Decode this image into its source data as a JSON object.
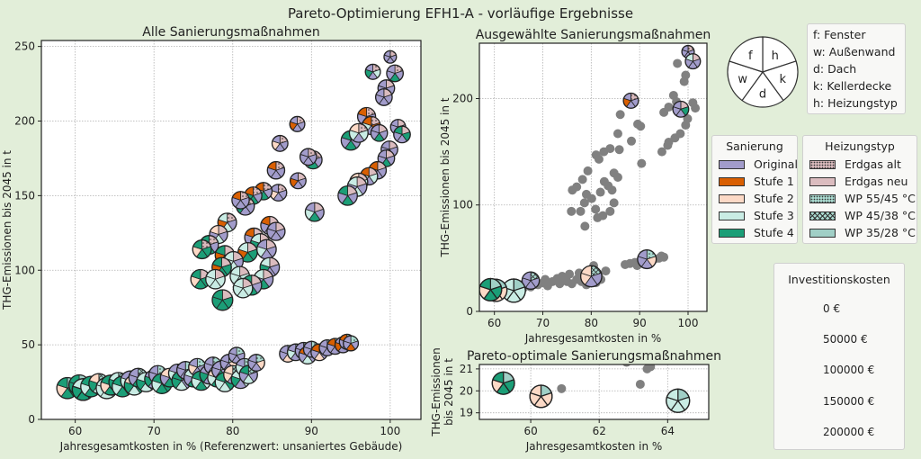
{
  "title": "Pareto-Optimierung EFH1-A - vorläufige Ergebnisse",
  "colors": {
    "building": [
      "#a29ccb",
      "#d95f02",
      "#fcd9c6",
      "#c9ece4",
      "#1b9e77"
    ],
    "heating": [
      "#d8b8bb",
      "#dbbcbf",
      "#a9d9cf",
      "#a9d9cf",
      "#a0cfc6"
    ],
    "gray": "#808080",
    "background": "#e2eed9"
  },
  "key_legend": {
    "pie_labels": {
      "f": "f",
      "w": "w",
      "d": "d",
      "k": "k",
      "h": "h"
    },
    "items": [
      "f: Fenster",
      "w: Außenwand",
      "d: Dach",
      "k: Kellerdecke",
      "h: Heizungstyp"
    ]
  },
  "legend_sanierung": {
    "title": "Sanierung",
    "items": [
      "Original",
      "Stufe 1",
      "Stufe 2",
      "Stufe 3",
      "Stufe 4"
    ]
  },
  "legend_heizung": {
    "title": "Heizungstyp",
    "items": [
      "Erdgas alt",
      "Erdgas neu",
      "WP 55/45 °C",
      "WP 45/38 °C",
      "WP 35/28 °C"
    ]
  },
  "legend_invest": {
    "title": "Investitionskosten",
    "values": [
      0,
      50000,
      100000,
      150000,
      200000
    ],
    "labels": [
      "0 €",
      "50000 €",
      "100000 €",
      "150000 €",
      "200000 €"
    ]
  },
  "chart_data": [
    {
      "id": "all",
      "type": "scatter",
      "title": "Alle Sanierungsmaßnahmen",
      "xlabel": "Jahresgesamtkosten in % (Referenzwert: unsaniertes Gebäude)",
      "ylabel": "THG-Emissionen bis 2045 in t",
      "xlim": [
        55.7,
        103.9
      ],
      "ylim": [
        0,
        254
      ],
      "xticks": [
        60,
        70,
        80,
        90,
        100
      ],
      "yticks": [
        0,
        50,
        100,
        150,
        200,
        250
      ],
      "grid": true,
      "point_format": [
        "x",
        "y",
        "investment_kEUR",
        "f",
        "w",
        "d",
        "k",
        "h"
      ],
      "points": [
        [
          100,
          243,
          15,
          0,
          0,
          0,
          0,
          0
        ],
        [
          97.8,
          233,
          30,
          0,
          4,
          0,
          3,
          0
        ],
        [
          100.6,
          232,
          40,
          0,
          0,
          4,
          0,
          0
        ],
        [
          99.5,
          222,
          40,
          0,
          0,
          4,
          0,
          1
        ],
        [
          99.2,
          216,
          40,
          0,
          0,
          0,
          0,
          1
        ],
        [
          88.2,
          198,
          30,
          0,
          1,
          0,
          0,
          0
        ],
        [
          86,
          185,
          35,
          0,
          2,
          0,
          0,
          0
        ],
        [
          97,
          203,
          50,
          1,
          0,
          0,
          0,
          0
        ],
        [
          97.6,
          197,
          50,
          1,
          3,
          0,
          1,
          0
        ],
        [
          95,
          187,
          60,
          4,
          0,
          4,
          0,
          0
        ],
        [
          96,
          192,
          55,
          2,
          3,
          0,
          3,
          0
        ],
        [
          98.6,
          192,
          40,
          0,
          0,
          4,
          0,
          1
        ],
        [
          101,
          196,
          30,
          0,
          0,
          0,
          0,
          1
        ],
        [
          101.5,
          191,
          40,
          4,
          0,
          0,
          4,
          1
        ],
        [
          99.9,
          181,
          40,
          0,
          0,
          0,
          0,
          1
        ],
        [
          99.5,
          175,
          40,
          0,
          0,
          4,
          0,
          1
        ],
        [
          90.2,
          174,
          50,
          0,
          3,
          4,
          0,
          0
        ],
        [
          89.6,
          176,
          40,
          0,
          0,
          0,
          0,
          0
        ],
        [
          98.4,
          167,
          45,
          1,
          0,
          0,
          0,
          1
        ],
        [
          97.3,
          163,
          45,
          1,
          3,
          0,
          3,
          1
        ],
        [
          96,
          159,
          50,
          2,
          3,
          0,
          3,
          1
        ],
        [
          95.8,
          156,
          60,
          3,
          0,
          3,
          0,
          1
        ],
        [
          94.6,
          150,
          60,
          4,
          0,
          4,
          0,
          1
        ],
        [
          88.3,
          160,
          35,
          0,
          1,
          0,
          0,
          1
        ],
        [
          90.4,
          139,
          55,
          0,
          3,
          4,
          0,
          1
        ],
        [
          85.5,
          167,
          45,
          1,
          0,
          0,
          0,
          0
        ],
        [
          85.8,
          152,
          40,
          0,
          2,
          0,
          0,
          0
        ],
        [
          83.9,
          153,
          45,
          1,
          3,
          4,
          0,
          0
        ],
        [
          82.6,
          150,
          45,
          1,
          4,
          4,
          0,
          0
        ],
        [
          81.6,
          143,
          50,
          3,
          4,
          0,
          0,
          0
        ],
        [
          81,
          147,
          45,
          1,
          0,
          0,
          0,
          0
        ],
        [
          84.7,
          130,
          50,
          1,
          0,
          0,
          0,
          1
        ],
        [
          85.5,
          126,
          50,
          0,
          0,
          0,
          0,
          1
        ],
        [
          79.3,
          132,
          55,
          3,
          1,
          3,
          0,
          0
        ],
        [
          78.2,
          124,
          50,
          2,
          0,
          3,
          0,
          1
        ],
        [
          77,
          117,
          55,
          4,
          1,
          4,
          0,
          0
        ],
        [
          76.1,
          114,
          55,
          4,
          2,
          4,
          4,
          0
        ],
        [
          82.7,
          122,
          55,
          1,
          0,
          0,
          0,
          1
        ],
        [
          83.5,
          118,
          60,
          3,
          4,
          0,
          0,
          1
        ],
        [
          81.9,
          112,
          60,
          3,
          1,
          4,
          4,
          1
        ],
        [
          84.3,
          114,
          60,
          0,
          3,
          0,
          0,
          1
        ],
        [
          79,
          110,
          60,
          4,
          1,
          4,
          4,
          1
        ],
        [
          80.1,
          106,
          60,
          3,
          3,
          3,
          0,
          1
        ],
        [
          84.7,
          102,
          60,
          3,
          4,
          0,
          0,
          1
        ],
        [
          83.9,
          94,
          60,
          3,
          0,
          4,
          0,
          1
        ],
        [
          80.9,
          96,
          60,
          3,
          3,
          3,
          3,
          1
        ],
        [
          78.6,
          102,
          60,
          4,
          1,
          4,
          4,
          1
        ],
        [
          75.9,
          94,
          60,
          4,
          2,
          4,
          4,
          1
        ],
        [
          77.8,
          94,
          60,
          3,
          3,
          3,
          3,
          1
        ],
        [
          82.4,
          90,
          65,
          4,
          0,
          4,
          0,
          1
        ],
        [
          81.3,
          88,
          60,
          3,
          3,
          3,
          3,
          1
        ],
        [
          78.7,
          80,
          70,
          4,
          4,
          4,
          4,
          1
        ],
        [
          59,
          21,
          75,
          4,
          2,
          4,
          4,
          4
        ],
        [
          60.5,
          23,
          70,
          4,
          4,
          2,
          4,
          4
        ],
        [
          61,
          20,
          80,
          3,
          4,
          4,
          3,
          4
        ],
        [
          62,
          22,
          70,
          4,
          3,
          4,
          4,
          3
        ],
        [
          63,
          24,
          65,
          2,
          4,
          3,
          4,
          3
        ],
        [
          64,
          21,
          75,
          3,
          3,
          3,
          3,
          4
        ],
        [
          64.5,
          23,
          65,
          4,
          2,
          4,
          0,
          3
        ],
        [
          65.5,
          25,
          60,
          3,
          4,
          0,
          4,
          3
        ],
        [
          66,
          22,
          70,
          4,
          3,
          4,
          3,
          4
        ],
        [
          67,
          26,
          60,
          0,
          3,
          0,
          4,
          3
        ],
        [
          67.5,
          23,
          65,
          2,
          4,
          3,
          4,
          4
        ],
        [
          68,
          28,
          55,
          0,
          0,
          4,
          0,
          3
        ],
        [
          69,
          25,
          60,
          3,
          4,
          3,
          0,
          3
        ],
        [
          70,
          27,
          55,
          0,
          4,
          0,
          3,
          2
        ],
        [
          70.5,
          30,
          50,
          0,
          0,
          3,
          0,
          2
        ],
        [
          71,
          24,
          65,
          4,
          3,
          4,
          4,
          4
        ],
        [
          72,
          28,
          55,
          2,
          0,
          4,
          0,
          3
        ],
        [
          73,
          31,
          50,
          0,
          3,
          0,
          0,
          2
        ],
        [
          73.5,
          26,
          60,
          4,
          4,
          3,
          0,
          3
        ],
        [
          74,
          33,
          45,
          0,
          0,
          0,
          3,
          2
        ],
        [
          75,
          28,
          55,
          3,
          0,
          4,
          0,
          3
        ],
        [
          75.5,
          35,
          45,
          0,
          2,
          0,
          0,
          2
        ],
        [
          76,
          26,
          60,
          4,
          3,
          4,
          3,
          4
        ],
        [
          77,
          30,
          55,
          0,
          4,
          0,
          2,
          3
        ],
        [
          77.5,
          36,
          45,
          0,
          0,
          3,
          0,
          2
        ],
        [
          78,
          28,
          55,
          2,
          3,
          4,
          0,
          3
        ],
        [
          78.5,
          33,
          50,
          0,
          0,
          4,
          0,
          3
        ],
        [
          79,
          25,
          60,
          4,
          3,
          3,
          4,
          4
        ],
        [
          79.5,
          38,
          40,
          0,
          0,
          0,
          2,
          2
        ],
        [
          80,
          30,
          50,
          2,
          2,
          0,
          0,
          3
        ],
        [
          80.5,
          43,
          35,
          0,
          0,
          0,
          0,
          2
        ],
        [
          81,
          27,
          55,
          3,
          4,
          0,
          3,
          4
        ],
        [
          81.5,
          35,
          45,
          0,
          3,
          0,
          0,
          2
        ],
        [
          82,
          30,
          50,
          4,
          0,
          3,
          0,
          3
        ],
        [
          83,
          38,
          40,
          0,
          0,
          0,
          2,
          2
        ],
        [
          87,
          44,
          40,
          0,
          0,
          2,
          0,
          2
        ],
        [
          88,
          45,
          40,
          0,
          3,
          0,
          0,
          2
        ],
        [
          89,
          46,
          40,
          0,
          0,
          0,
          2,
          2
        ],
        [
          89.5,
          43,
          45,
          1,
          0,
          3,
          0,
          2
        ],
        [
          90,
          47,
          35,
          0,
          0,
          0,
          0,
          2
        ],
        [
          91,
          45,
          40,
          1,
          0,
          2,
          0,
          2
        ],
        [
          92,
          48,
          35,
          0,
          0,
          0,
          1,
          2
        ],
        [
          93,
          49,
          35,
          1,
          0,
          0,
          0,
          2
        ],
        [
          94,
          50,
          35,
          0,
          1,
          0,
          0,
          2
        ],
        [
          94.5,
          52,
          30,
          1,
          0,
          0,
          0,
          2
        ],
        [
          95,
          51,
          30,
          0,
          0,
          1,
          0,
          2
        ]
      ]
    },
    {
      "id": "selected",
      "type": "scatter",
      "title": "Ausgewählte Sanierungsmaßnahmen",
      "xlabel": "Jahresgesamtkosten in %",
      "ylabel": "THG-Emissionen bis 2045 in t",
      "xlim": [
        56.9,
        103.9
      ],
      "ylim": [
        0,
        252
      ],
      "xticks": [
        60,
        70,
        80,
        90,
        100
      ],
      "yticks": [
        0,
        100,
        200
      ],
      "grid": true,
      "points": [
        [
          100,
          244,
          15,
          0,
          0,
          0,
          0,
          0
        ],
        [
          101,
          235,
          30,
          3,
          0,
          0,
          0,
          1
        ],
        [
          88.2,
          198,
          30,
          0,
          1,
          0,
          0,
          0
        ],
        [
          98.5,
          190,
          35,
          0,
          0,
          0,
          4,
          1
        ],
        [
          91.5,
          49,
          55,
          0,
          0,
          0,
          2,
          2
        ],
        [
          80,
          33,
          75,
          2,
          2,
          0,
          0,
          3
        ],
        [
          67.5,
          29,
          45,
          0,
          0,
          0,
          0,
          3
        ],
        [
          64,
          19.5,
          95,
          3,
          3,
          3,
          3,
          4
        ],
        [
          60.3,
          19.8,
          85,
          2,
          2,
          2,
          2,
          4
        ],
        [
          59.2,
          20.4,
          85,
          4,
          2,
          4,
          4,
          4
        ]
      ]
    },
    {
      "id": "pareto",
      "type": "scatter",
      "title": "Pareto-optimale Sanierungsmaßnahmen",
      "xlabel": "Jahresgesamtkosten in %",
      "ylabel": "THG-Emissionen\nbis 2045 in t",
      "xlim": [
        58.5,
        65.2
      ],
      "ylim": [
        18.7,
        21.2
      ],
      "xticks": [
        60,
        62,
        64
      ],
      "yticks": [
        19,
        20,
        21
      ],
      "grid": true,
      "gray_points": [
        [
          60.9,
          20.1
        ],
        [
          63.2,
          20.3
        ],
        [
          63.4,
          21.0
        ],
        [
          63.5,
          21.1
        ],
        [
          62.8,
          21.3
        ]
      ],
      "points": [
        [
          59.2,
          20.35,
          85,
          4,
          2,
          4,
          4,
          4
        ],
        [
          60.3,
          19.75,
          85,
          2,
          2,
          2,
          2,
          4
        ],
        [
          64.3,
          19.55,
          95,
          3,
          3,
          3,
          3,
          4
        ]
      ]
    }
  ]
}
